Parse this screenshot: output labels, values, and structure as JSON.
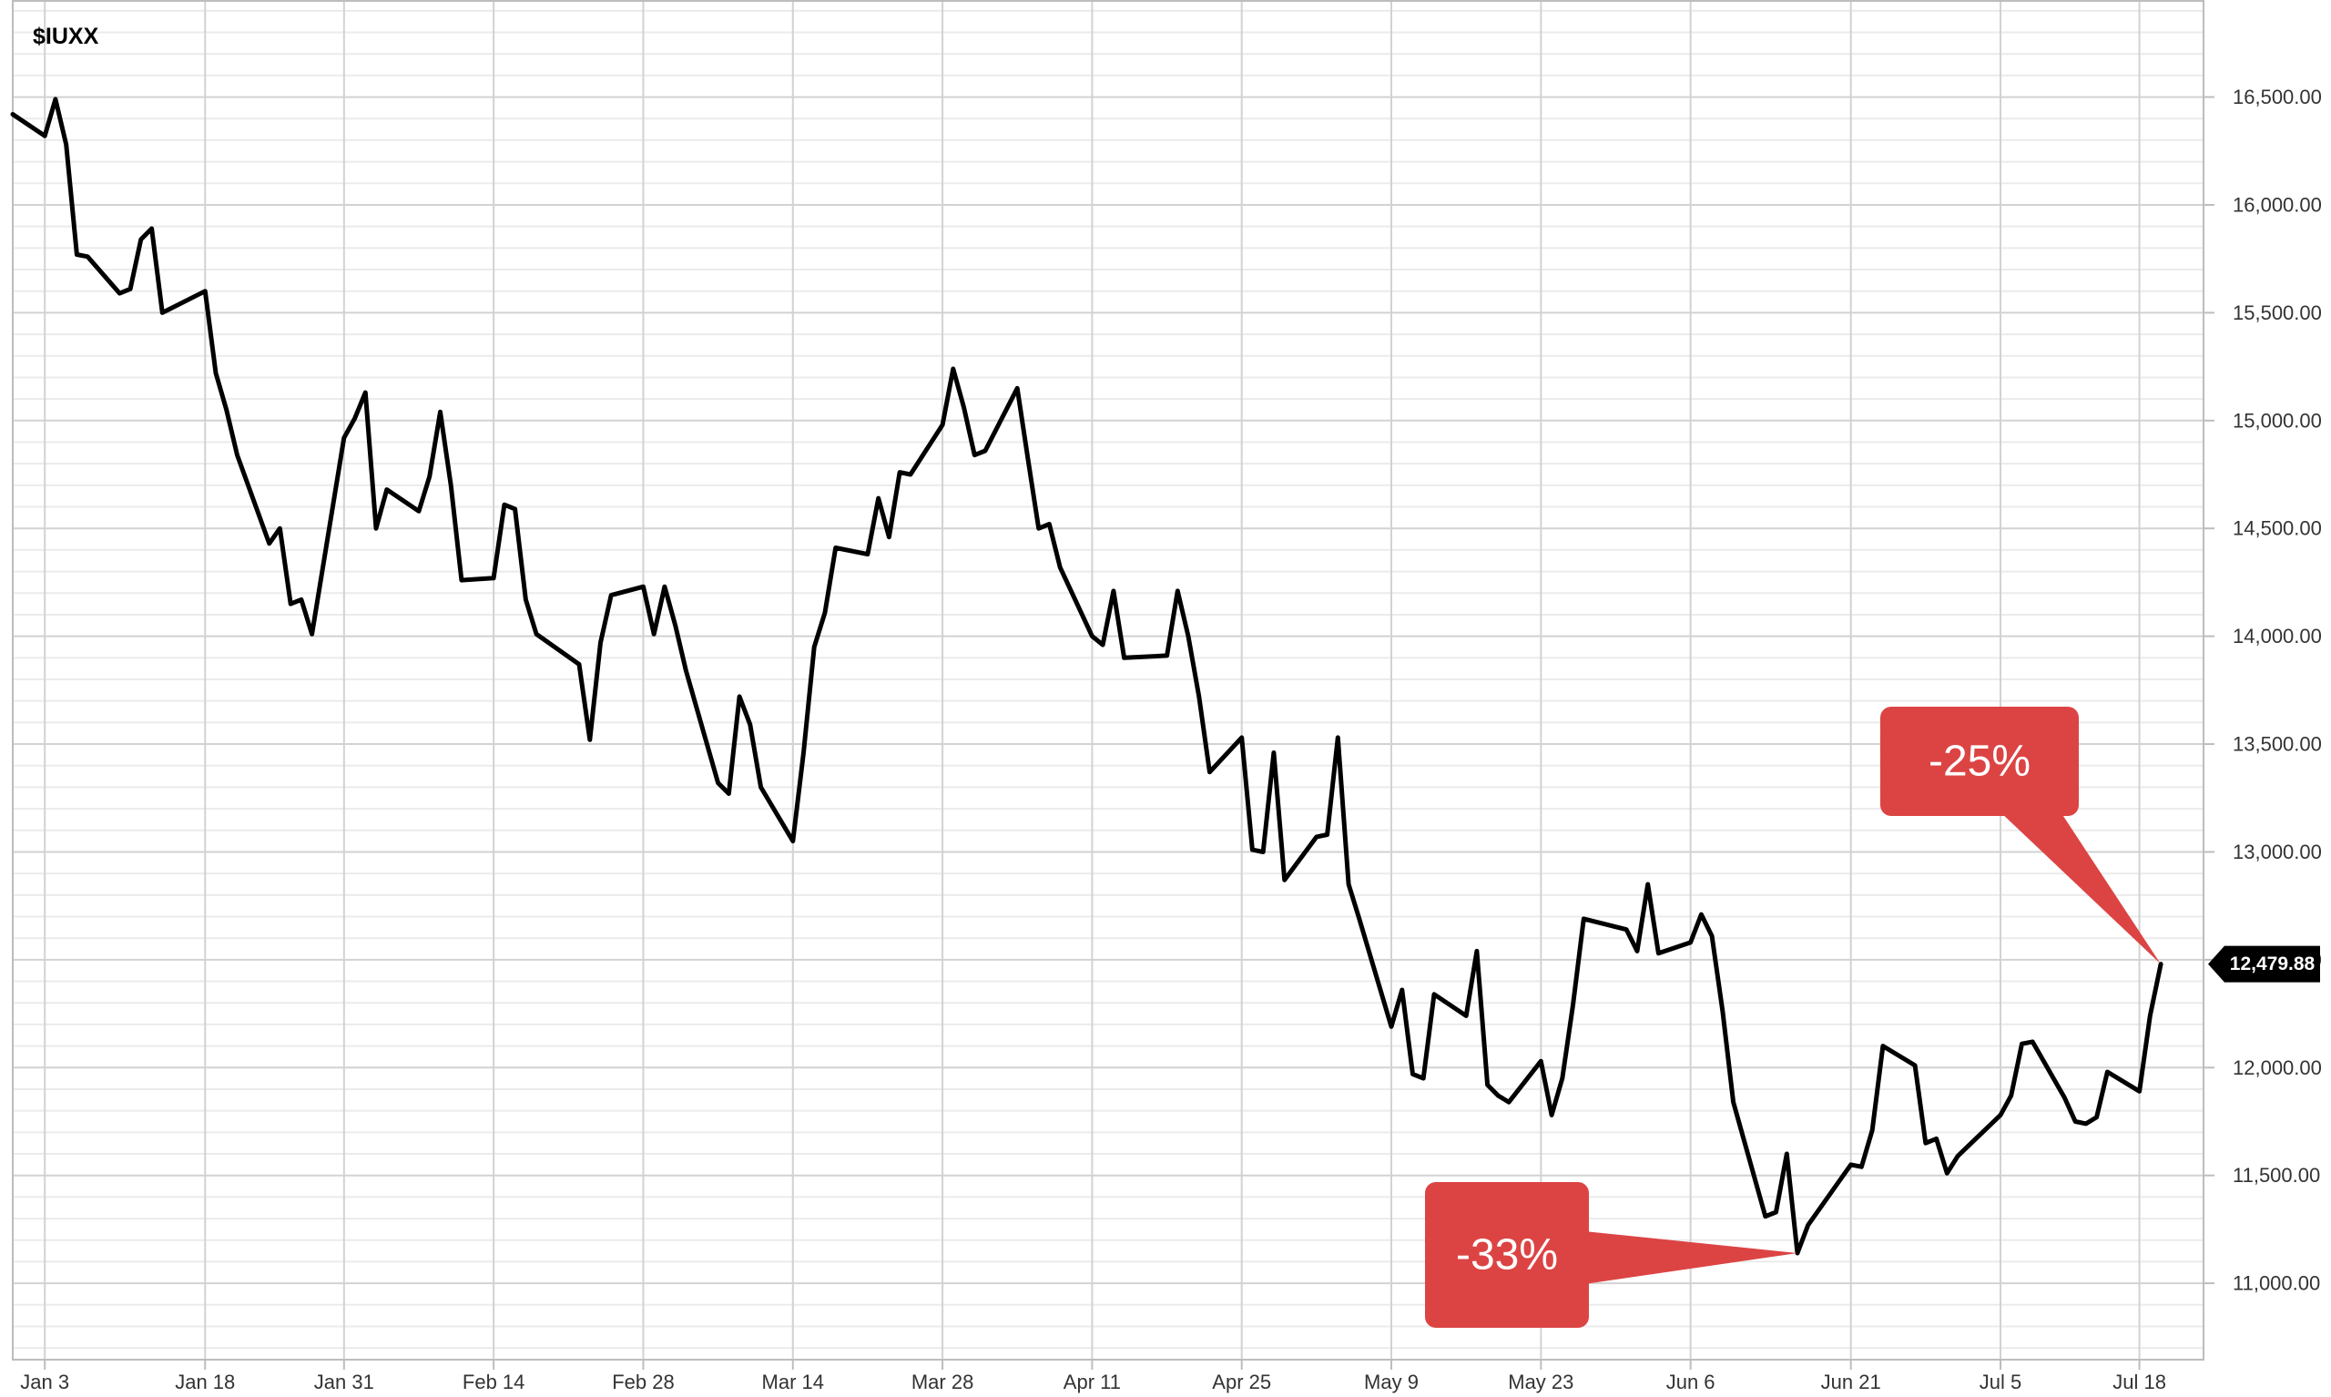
{
  "chart_data": {
    "type": "line",
    "title": "$IUXX",
    "xlabel": "",
    "ylabel": "",
    "grid": true,
    "ylim": [
      10650,
      16950
    ],
    "y_ticks": [
      "16,500.00",
      "16,000.00",
      "15,500.00",
      "15,000.00",
      "14,500.00",
      "14,000.00",
      "13,500.00",
      "13,000.00",
      "12,500.00",
      "12,000.00",
      "11,500.00",
      "11,000.00"
    ],
    "y_tick_values": [
      16500,
      16000,
      15500,
      15000,
      14500,
      14000,
      13500,
      13000,
      12500,
      12000,
      11500,
      11000
    ],
    "x_ticks": [
      "Jan 3",
      "Jan 18",
      "Jan 31",
      "Feb 14",
      "Feb 28",
      "Mar 14",
      "Mar 28",
      "Apr 11",
      "Apr 25",
      "May 9",
      "May 23",
      "Jun 6",
      "Jun 21",
      "Jul 5",
      "Jul 18"
    ],
    "x_tick_dates": [
      "2022-01-03",
      "2022-01-18",
      "2022-01-31",
      "2022-02-14",
      "2022-02-28",
      "2022-03-14",
      "2022-03-28",
      "2022-04-11",
      "2022-04-25",
      "2022-05-09",
      "2022-05-23",
      "2022-06-06",
      "2022-06-21",
      "2022-07-05",
      "2022-07-18"
    ],
    "x_range": [
      "2021-12-31",
      "2022-07-24"
    ],
    "series": [
      {
        "color": "#000000",
        "x": [
          "2021-12-31",
          "2022-01-03",
          "2022-01-04",
          "2022-01-05",
          "2022-01-06",
          "2022-01-07",
          "2022-01-10",
          "2022-01-11",
          "2022-01-12",
          "2022-01-13",
          "2022-01-14",
          "2022-01-18",
          "2022-01-19",
          "2022-01-20",
          "2022-01-21",
          "2022-01-24",
          "2022-01-25",
          "2022-01-26",
          "2022-01-27",
          "2022-01-28",
          "2022-01-31",
          "2022-02-01",
          "2022-02-02",
          "2022-02-03",
          "2022-02-04",
          "2022-02-07",
          "2022-02-08",
          "2022-02-09",
          "2022-02-10",
          "2022-02-11",
          "2022-02-14",
          "2022-02-15",
          "2022-02-16",
          "2022-02-17",
          "2022-02-18",
          "2022-02-22",
          "2022-02-23",
          "2022-02-24",
          "2022-02-25",
          "2022-02-28",
          "2022-03-01",
          "2022-03-02",
          "2022-03-03",
          "2022-03-04",
          "2022-03-07",
          "2022-03-08",
          "2022-03-09",
          "2022-03-10",
          "2022-03-11",
          "2022-03-14",
          "2022-03-15",
          "2022-03-16",
          "2022-03-17",
          "2022-03-18",
          "2022-03-21",
          "2022-03-22",
          "2022-03-23",
          "2022-03-24",
          "2022-03-25",
          "2022-03-28",
          "2022-03-29",
          "2022-03-30",
          "2022-03-31",
          "2022-04-01",
          "2022-04-04",
          "2022-04-05",
          "2022-04-06",
          "2022-04-07",
          "2022-04-08",
          "2022-04-11",
          "2022-04-12",
          "2022-04-13",
          "2022-04-14",
          "2022-04-18",
          "2022-04-19",
          "2022-04-20",
          "2022-04-21",
          "2022-04-22",
          "2022-04-25",
          "2022-04-26",
          "2022-04-27",
          "2022-04-28",
          "2022-04-29",
          "2022-05-02",
          "2022-05-03",
          "2022-05-04",
          "2022-05-05",
          "2022-05-06",
          "2022-05-09",
          "2022-05-10",
          "2022-05-11",
          "2022-05-12",
          "2022-05-13",
          "2022-05-16",
          "2022-05-17",
          "2022-05-18",
          "2022-05-19",
          "2022-05-20",
          "2022-05-23",
          "2022-05-24",
          "2022-05-25",
          "2022-05-26",
          "2022-05-27",
          "2022-05-31",
          "2022-06-01",
          "2022-06-02",
          "2022-06-03",
          "2022-06-06",
          "2022-06-07",
          "2022-06-08",
          "2022-06-09",
          "2022-06-10",
          "2022-06-13",
          "2022-06-14",
          "2022-06-15",
          "2022-06-16",
          "2022-06-17",
          "2022-06-21",
          "2022-06-22",
          "2022-06-23",
          "2022-06-24",
          "2022-06-27",
          "2022-06-28",
          "2022-06-29",
          "2022-06-30",
          "2022-07-01",
          "2022-07-05",
          "2022-07-06",
          "2022-07-07",
          "2022-07-08",
          "2022-07-11",
          "2022-07-12",
          "2022-07-13",
          "2022-07-14",
          "2022-07-15",
          "2022-07-18",
          "2022-07-19",
          "2022-07-20"
        ],
        "y": [
          16420,
          16320,
          16490,
          16280,
          15770,
          15760,
          15590,
          15610,
          15840,
          15890,
          15500,
          15600,
          15220,
          15050,
          14840,
          14430,
          14500,
          14150,
          14170,
          14010,
          14920,
          15010,
          15130,
          14500,
          14680,
          14580,
          14740,
          15040,
          14700,
          14260,
          14270,
          14610,
          14590,
          14170,
          14010,
          13870,
          13520,
          13970,
          14190,
          14230,
          14010,
          14230,
          14050,
          13840,
          13320,
          13270,
          13720,
          13590,
          13300,
          13050,
          13460,
          13950,
          14110,
          14410,
          14380,
          14640,
          14460,
          14760,
          14750,
          14980,
          15240,
          15060,
          14840,
          14860,
          15150,
          14820,
          14500,
          14520,
          14320,
          14000,
          13960,
          14210,
          13900,
          13910,
          14210,
          14000,
          13720,
          13370,
          13530,
          13010,
          13000,
          13460,
          12870,
          13070,
          13080,
          13530,
          12850,
          12690,
          12190,
          12360,
          11970,
          11950,
          12340,
          12240,
          12540,
          11920,
          11870,
          11840,
          12030,
          11780,
          11950,
          12290,
          12690,
          12640,
          12540,
          12850,
          12530,
          12580,
          12710,
          12610,
          12260,
          11840,
          11310,
          11330,
          11600,
          11140,
          11270,
          11550,
          11540,
          11710,
          12100,
          12010,
          11650,
          11670,
          11510,
          11590,
          11780,
          11870,
          12110,
          12120,
          11860,
          11750,
          11740,
          11770,
          11980,
          11890,
          12240,
          12479.88
        ]
      }
    ],
    "last_value_label": "12,479.88",
    "annotations": [
      {
        "text": "-33%",
        "color": "#dc4444",
        "points_to": {
          "x": "2022-06-16",
          "y": 11140
        }
      },
      {
        "text": "-25%",
        "color": "#dc4444",
        "points_to": {
          "x": "2022-07-20",
          "y": 12479.88
        }
      }
    ],
    "colors": {
      "line": "#000000",
      "grid_major": "#d2d2d2",
      "grid_minor": "#ebebeb",
      "callout": "#dc4444",
      "price_tag": "#000000"
    }
  }
}
